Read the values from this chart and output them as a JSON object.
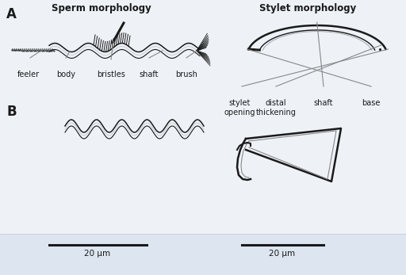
{
  "bg_color": "#eef2f7",
  "panel_bg": "#ffffff",
  "title_sperm": "Sperm morphology",
  "title_stylet": "Stylet morphology",
  "label_A": "A",
  "label_B": "B",
  "scale_label": "20 μm",
  "line_color": "#1a1a1a",
  "gray_color": "#888888",
  "strip_color": "#dde6f0"
}
